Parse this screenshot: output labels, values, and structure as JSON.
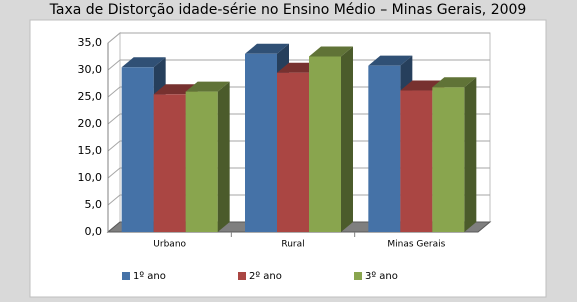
{
  "chart_data": {
    "type": "bar3d",
    "title": "Taxa de Distorção idade-série no Ensino Médio – Minas Gerais, 2009",
    "categories": [
      "Urbano",
      "Rural",
      "Minas Gerais"
    ],
    "series": [
      {
        "name": "1º ano",
        "color": "#4572a7",
        "values": [
          30.5,
          33.0,
          30.8
        ]
      },
      {
        "name": "2º ano",
        "color": "#aa4643",
        "values": [
          25.5,
          29.5,
          26.2
        ]
      },
      {
        "name": "3º ano",
        "color": "#89a54e",
        "values": [
          26.0,
          32.5,
          26.8
        ]
      }
    ],
    "ylim": [
      0,
      35
    ],
    "yticks": [
      {
        "value": 0,
        "label": "0,0"
      },
      {
        "value": 5,
        "label": "5,0"
      },
      {
        "value": 10,
        "label": "10,0"
      },
      {
        "value": 15,
        "label": "15,0"
      },
      {
        "value": 20,
        "label": "20,0"
      },
      {
        "value": 25,
        "label": "25,0"
      },
      {
        "value": 30,
        "label": "30,0"
      },
      {
        "value": 35,
        "label": "35,0"
      }
    ],
    "grid": true,
    "legend": "bottom"
  }
}
